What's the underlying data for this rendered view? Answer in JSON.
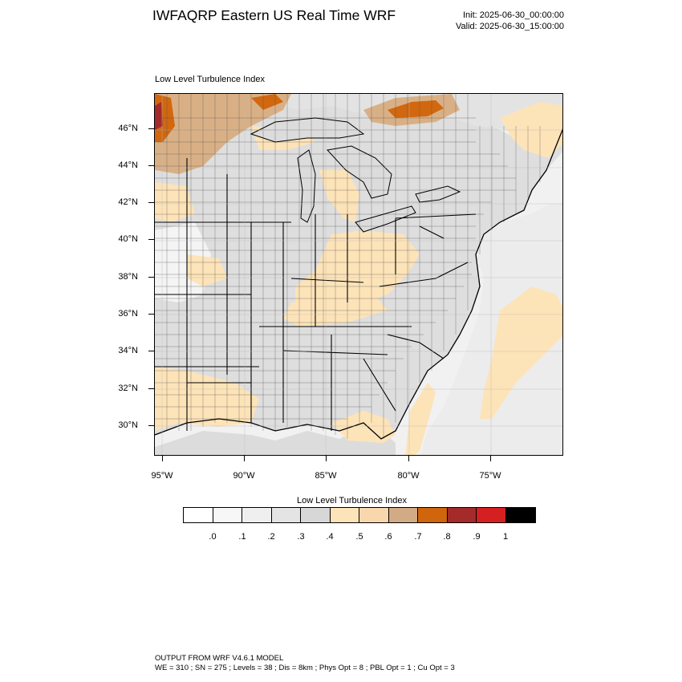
{
  "header": {
    "title": "IWFAQRP Eastern US Real Time WRF",
    "init": "Init: 2025-06-30_00:00:00",
    "valid": "Valid: 2025-06-30_15:00:00"
  },
  "map": {
    "field_title": "Low Level Turbulence Index",
    "lat_labels": [
      "46°N",
      "44°N",
      "42°N",
      "40°N",
      "38°N",
      "36°N",
      "34°N",
      "32°N",
      "30°N"
    ],
    "lon_labels": [
      "95°W",
      "90°W",
      "85°W",
      "80°W",
      "75°W"
    ],
    "regions": [
      {
        "name": "lake-superior",
        "fill": "#dcdcdc"
      },
      {
        "name": "lake-michigan",
        "fill": "#dcdcdc"
      },
      {
        "name": "lake-huron",
        "fill": "#dcdcdc"
      },
      {
        "name": "lake-erie",
        "fill": "#dcdcdc"
      },
      {
        "name": "lake-ontario",
        "fill": "#dcdcdc"
      },
      {
        "name": "atlantic-ocean",
        "fill": "#ededed"
      },
      {
        "name": "gulf-of-mexico",
        "fill": "#dcdcdc"
      },
      {
        "name": "ocean-band-0.5",
        "fill": "#fde3b8"
      },
      {
        "name": "canada-high-0.7",
        "fill": "#d9b086"
      },
      {
        "name": "canada-high-0.8",
        "fill": "#d1670f"
      },
      {
        "name": "dakota-high-0.9",
        "fill": "#a52a2a"
      }
    ]
  },
  "colorbar": {
    "title": "Low Level Turbulence Index",
    "colors": [
      "#ffffff",
      "#f7f7f7",
      "#efefef",
      "#e4e4e4",
      "#d7d7d7",
      "#fde3b8",
      "#f8d7ad",
      "#d2ab85",
      "#d0650c",
      "#a52a2a",
      "#d42020",
      "#000000"
    ],
    "labels": [
      ".0",
      ".1",
      ".2",
      ".3",
      ".4",
      ".5",
      ".6",
      ".7",
      ".8",
      ".9",
      "1"
    ]
  },
  "footer": {
    "line1": "OUTPUT FROM WRF V4.6.1 MODEL",
    "line2": "WE = 310 ; SN = 275 ; Levels = 38 ; Dis = 8km ; Phys Opt = 8 ; PBL Opt = 1 ; Cu Opt = 3"
  }
}
